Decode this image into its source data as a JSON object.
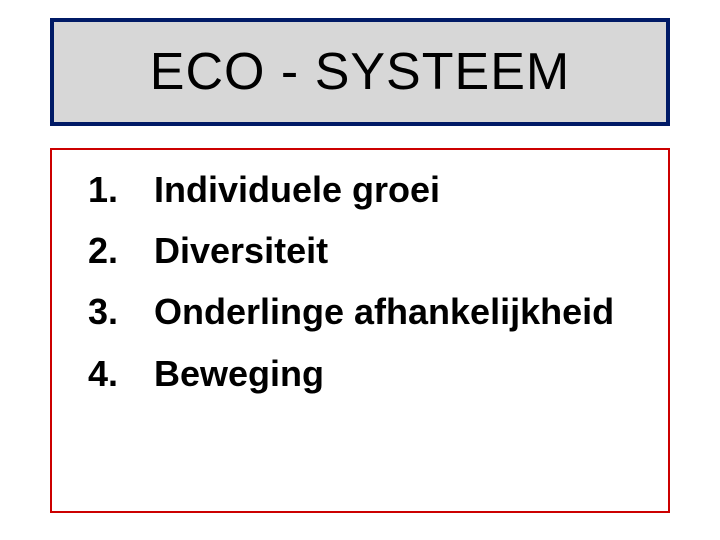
{
  "title": {
    "text": "ECO - SYSTEEM",
    "background_color": "#d7d7d7",
    "border_color": "#001a66",
    "border_width": 4,
    "text_color": "#000000",
    "font_size": 52
  },
  "content": {
    "background_color": "#ffffff",
    "border_color": "#cc0000",
    "border_width": 2,
    "text_color": "#000000",
    "font_size": 36,
    "items": [
      {
        "num": "1.",
        "text": "Individuele groei"
      },
      {
        "num": "2.",
        "text": "Diversiteit"
      },
      {
        "num": "3.",
        "text": "Onderlinge afhankelijkheid"
      },
      {
        "num": "4.",
        "text": "Beweging"
      }
    ]
  }
}
